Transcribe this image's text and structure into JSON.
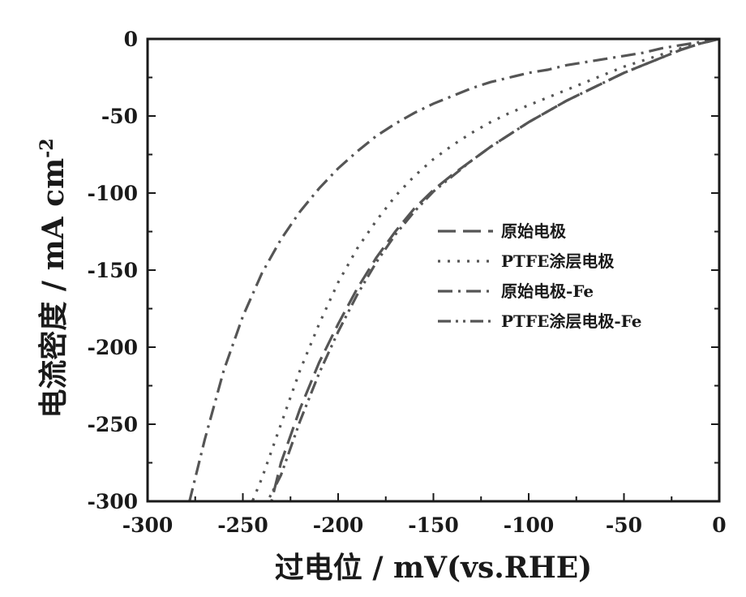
{
  "chart_data": {
    "type": "line",
    "title": "",
    "xlabel": "过电位 / mV(vs.RHE)",
    "ylabel": "电流密度 / mA cm",
    "ylabel_superscript": "-2",
    "xlim": [
      -300,
      0
    ],
    "ylim": [
      -300,
      0
    ],
    "xticks": [
      -300,
      -250,
      -200,
      -150,
      -100,
      -50,
      0
    ],
    "yticks": [
      0,
      -50,
      -100,
      -150,
      -200,
      -250,
      -300
    ],
    "grid": false,
    "legend_position": "right",
    "series": [
      {
        "name": "原始电极",
        "style": "dash",
        "color": "#555555",
        "x": [
          0,
          -10,
          -20,
          -30,
          -40,
          -50,
          -60,
          -70,
          -80,
          -90,
          -100,
          -110,
          -120,
          -130,
          -140,
          -150,
          -160,
          -170,
          -180,
          -190,
          -200,
          -210,
          -220,
          -230,
          -235
        ],
        "y": [
          0,
          -3,
          -7,
          -12,
          -17,
          -22,
          -28,
          -34,
          -40,
          -47,
          -54,
          -62,
          -70,
          -79,
          -88,
          -98,
          -110,
          -125,
          -142,
          -162,
          -185,
          -210,
          -240,
          -275,
          -300
        ]
      },
      {
        "name": "PTFE涂层电极",
        "style": "dot",
        "color": "#555555",
        "x": [
          0,
          -10,
          -20,
          -30,
          -40,
          -50,
          -60,
          -70,
          -80,
          -90,
          -100,
          -110,
          -120,
          -130,
          -140,
          -150,
          -160,
          -170,
          -180,
          -190,
          -200,
          -210,
          -220,
          -230,
          -240,
          -245
        ],
        "y": [
          0,
          -3,
          -6,
          -10,
          -14,
          -18,
          -23,
          -28,
          -33,
          -38,
          -43,
          -48,
          -54,
          -61,
          -69,
          -78,
          -89,
          -102,
          -118,
          -136,
          -158,
          -185,
          -215,
          -250,
          -285,
          -300
        ]
      },
      {
        "name": "原始电极-Fe",
        "style": "dash-dot",
        "color": "#555555",
        "x": [
          0,
          -10,
          -20,
          -30,
          -40,
          -50,
          -60,
          -70,
          -80,
          -90,
          -100,
          -110,
          -120,
          -130,
          -140,
          -150,
          -160,
          -170,
          -180,
          -190,
          -200,
          -210,
          -220,
          -230,
          -240,
          -250,
          -260,
          -270,
          -278
        ],
        "y": [
          0,
          -2,
          -4,
          -6,
          -9,
          -11,
          -13,
          -15,
          -17,
          -20,
          -22,
          -25,
          -28,
          -32,
          -37,
          -42,
          -48,
          -55,
          -63,
          -73,
          -84,
          -97,
          -112,
          -130,
          -152,
          -180,
          -215,
          -260,
          -300
        ]
      },
      {
        "name": "PTFE涂层电极-Fe",
        "style": "dash-dot-dot",
        "color": "#555555",
        "x": [
          0,
          -10,
          -20,
          -30,
          -40,
          -50,
          -60,
          -70,
          -80,
          -90,
          -100,
          -110,
          -120,
          -130,
          -140,
          -150,
          -160,
          -170,
          -180,
          -190,
          -200,
          -210,
          -220,
          -230,
          -237
        ],
        "y": [
          0,
          -3,
          -7,
          -12,
          -17,
          -22,
          -28,
          -34,
          -40,
          -47,
          -54,
          -62,
          -70,
          -79,
          -89,
          -99,
          -112,
          -127,
          -145,
          -166,
          -190,
          -217,
          -248,
          -283,
          -300
        ]
      }
    ]
  }
}
